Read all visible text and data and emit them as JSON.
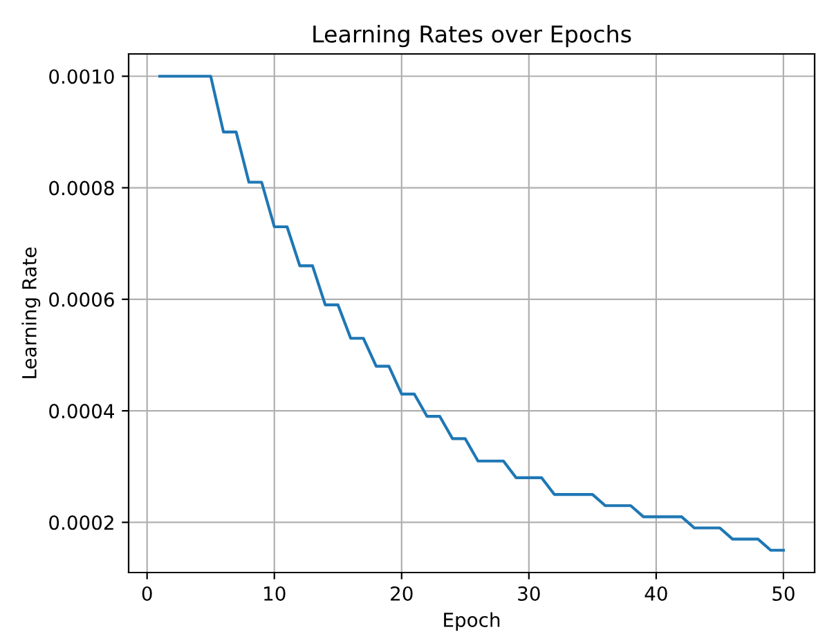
{
  "chart_data": {
    "type": "line",
    "title": "Learning Rates over Epochs",
    "xlabel": "Epoch",
    "ylabel": "Learning Rate",
    "x": [
      1,
      2,
      3,
      4,
      5,
      6,
      7,
      8,
      9,
      10,
      11,
      12,
      13,
      14,
      15,
      16,
      17,
      18,
      19,
      20,
      21,
      22,
      23,
      24,
      25,
      26,
      27,
      28,
      29,
      30,
      31,
      32,
      33,
      34,
      35,
      36,
      37,
      38,
      39,
      40,
      41,
      42,
      43,
      44,
      45,
      46,
      47,
      48,
      49,
      50
    ],
    "series": [
      {
        "color": "#1f77b4",
        "values": [
          0.001,
          0.001,
          0.001,
          0.001,
          0.001,
          0.0009,
          0.0009,
          0.00081,
          0.00081,
          0.00073,
          0.00073,
          0.00066,
          0.00066,
          0.00059,
          0.00059,
          0.00053,
          0.00053,
          0.00048,
          0.00048,
          0.00043,
          0.00043,
          0.00039,
          0.00039,
          0.00035,
          0.00035,
          0.00031,
          0.00031,
          0.00031,
          0.00028,
          0.00028,
          0.00028,
          0.00025,
          0.00025,
          0.00025,
          0.00025,
          0.00023,
          0.00023,
          0.00023,
          0.00021,
          0.00021,
          0.00021,
          0.00021,
          0.00019,
          0.00019,
          0.00019,
          0.00017,
          0.00017,
          0.00017,
          0.00015,
          0.00015
        ]
      }
    ],
    "xlim": [
      -1.45,
      52.45
    ],
    "xticks": [
      0,
      10,
      20,
      30,
      40,
      50
    ],
    "ylim": [
      0.00011,
      0.00104
    ],
    "yticks": [
      {
        "value": 0.0002,
        "label": "0.0002"
      },
      {
        "value": 0.0004,
        "label": "0.0004"
      },
      {
        "value": 0.0006,
        "label": "0.0006"
      },
      {
        "value": 0.0008,
        "label": "0.0008"
      },
      {
        "value": 0.001,
        "label": "0.0010"
      }
    ],
    "grid": true,
    "marker": "none",
    "line_style": "solid",
    "legend": false
  }
}
